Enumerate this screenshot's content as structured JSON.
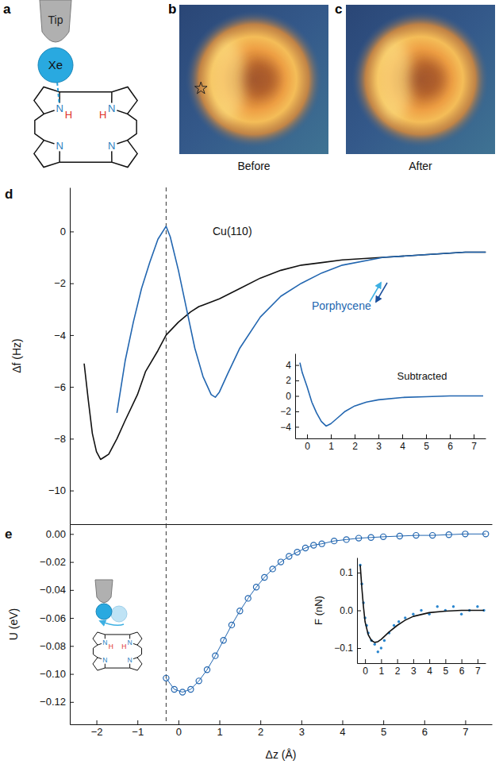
{
  "diagram": {
    "letter": "a",
    "tip": "Tip",
    "atom": "Xe",
    "nitrogens": [
      "N",
      "N",
      "N",
      "N"
    ],
    "hydrogens": [
      "H",
      "H"
    ]
  },
  "images": [
    {
      "letter": "b",
      "caption": "Before"
    },
    {
      "letter": "c",
      "caption": "After"
    }
  ],
  "schematic": {
    "nitrogens": [
      "N",
      "N",
      "N",
      "N"
    ],
    "hydrogens": [
      "H",
      "H"
    ]
  },
  "chart_data": [
    {
      "letter": "d",
      "type": "line",
      "y_label": "Δf (Hz)",
      "xlim": [
        -2.65,
        7.65
      ],
      "ylim": [
        -11.3,
        1.7
      ],
      "yticks": [
        0,
        {
          "value": -2,
          "label": "−2"
        },
        {
          "value": -4,
          "label": "−4"
        },
        {
          "value": -6,
          "label": "−6"
        },
        {
          "value": -8,
          "label": "−8"
        },
        {
          "value": -10,
          "label": "−10"
        }
      ],
      "tick_labels": "y",
      "vline_x": -0.3,
      "series": [
        {
          "name": "Cu(110)",
          "color": "#111111",
          "x": [
            -2.3,
            -2.2,
            -2.1,
            -2.0,
            -1.9,
            -1.8,
            -1.7,
            -1.5,
            -1.3,
            -1.0,
            -0.8,
            -0.5,
            -0.3,
            0,
            0.3,
            0.5,
            1.0,
            1.5,
            2.0,
            2.5,
            3.0,
            3.5,
            4.0,
            5.0,
            6.0,
            7.0,
            7.5
          ],
          "values": [
            -5.1,
            -6.5,
            -7.8,
            -8.5,
            -8.8,
            -8.7,
            -8.6,
            -8.0,
            -7.3,
            -6.3,
            -5.4,
            -4.6,
            -4.0,
            -3.5,
            -3.1,
            -2.9,
            -2.6,
            -2.2,
            -1.8,
            -1.5,
            -1.3,
            -1.2,
            -1.1,
            -1.0,
            -0.9,
            -0.8,
            -0.8
          ]
        },
        {
          "name": "Porphycene",
          "color": "#2266b0",
          "x": [
            -1.5,
            -1.3,
            -1.1,
            -0.9,
            -0.7,
            -0.5,
            -0.3,
            -0.2,
            0,
            0.2,
            0.4,
            0.6,
            0.8,
            0.9,
            1.0,
            1.2,
            1.5,
            2.0,
            2.5,
            3.0,
            3.5,
            4.0,
            5.0,
            6.0,
            7.0,
            7.5
          ],
          "values": [
            -7.0,
            -5.0,
            -3.5,
            -2.2,
            -1.2,
            -0.3,
            0.2,
            -0.2,
            -1.5,
            -3.0,
            -4.5,
            -5.6,
            -6.3,
            -6.4,
            -6.2,
            -5.5,
            -4.5,
            -3.3,
            -2.5,
            -2.0,
            -1.6,
            -1.3,
            -1.0,
            -0.9,
            -0.8,
            -0.8
          ]
        }
      ]
    },
    {
      "type": "line",
      "title": "Subtracted",
      "xlim": [
        -0.5,
        7.5
      ],
      "xticks": [
        0,
        1,
        2,
        3,
        4,
        5,
        6,
        7
      ],
      "ylim": [
        -5.5,
        5.5
      ],
      "yticks": [
        {
          "value": -4,
          "label": "−4"
        },
        {
          "value": -2,
          "label": "−2"
        },
        0,
        2,
        4
      ],
      "series": [
        {
          "color": "#2266b0",
          "x": [
            -0.3,
            -0.2,
            0,
            0.2,
            0.4,
            0.6,
            0.8,
            1.0,
            1.3,
            1.6,
            2.0,
            2.5,
            3.0,
            4.0,
            5.0,
            6.0,
            7.0,
            7.4
          ],
          "values": [
            4.3,
            3.0,
            1.2,
            -0.8,
            -2.2,
            -3.3,
            -3.9,
            -3.6,
            -2.8,
            -2.0,
            -1.3,
            -0.8,
            -0.5,
            -0.2,
            -0.1,
            0,
            0,
            0
          ]
        }
      ]
    },
    {
      "letter": "e",
      "type": "line",
      "marker": "circle",
      "x_label": "Δz (Å)",
      "y_label": "U (eV)",
      "xlim": [
        -2.65,
        7.65
      ],
      "xticks": [
        {
          "value": -2,
          "label": "−2"
        },
        {
          "value": -1,
          "label": "−1"
        },
        0,
        1,
        2,
        3,
        4,
        5,
        6,
        7
      ],
      "ylim": [
        -0.136,
        0.007
      ],
      "yticks": [
        {
          "value": 0,
          "label": "0.00"
        },
        {
          "value": -0.02,
          "label": "−0.02"
        },
        {
          "value": -0.04,
          "label": "−0.04"
        },
        {
          "value": -0.06,
          "label": "−0.06"
        },
        {
          "value": -0.08,
          "label": "−0.08"
        },
        {
          "value": -0.1,
          "label": "−0.10"
        },
        {
          "value": -0.12,
          "label": "−0.12"
        }
      ],
      "vline_x": -0.3,
      "series": [
        {
          "color": "#2266b0",
          "x": [
            -0.3,
            -0.1,
            0.1,
            0.3,
            0.5,
            0.7,
            0.9,
            1.1,
            1.3,
            1.5,
            1.7,
            1.9,
            2.1,
            2.3,
            2.5,
            2.7,
            2.9,
            3.1,
            3.3,
            3.5,
            3.8,
            4.1,
            4.4,
            4.7,
            5.0,
            5.4,
            5.8,
            6.2,
            6.6,
            7.0,
            7.5
          ],
          "values": [
            -0.103,
            -0.111,
            -0.113,
            -0.111,
            -0.105,
            -0.097,
            -0.087,
            -0.076,
            -0.065,
            -0.055,
            -0.046,
            -0.038,
            -0.031,
            -0.025,
            -0.02,
            -0.016,
            -0.013,
            -0.01,
            -0.008,
            -0.007,
            -0.005,
            -0.004,
            -0.003,
            -0.0025,
            -0.002,
            -0.0015,
            -0.001,
            -0.001,
            -0.0005,
            0,
            0
          ]
        }
      ]
    },
    {
      "type": "scatter",
      "y_label": "F (nN)",
      "xlim": [
        -0.5,
        7.5
      ],
      "xticks": [
        0,
        1,
        2,
        3,
        4,
        5,
        6,
        7
      ],
      "ylim": [
        -0.14,
        0.14
      ],
      "yticks": [
        {
          "value": 0.1,
          "label": "0.1"
        },
        {
          "value": 0,
          "label": "0.0"
        },
        {
          "value": -0.1,
          "label": "−0.1"
        }
      ],
      "series": [
        {
          "type": "scatter",
          "marker": "dot",
          "color": "#2a86cf",
          "x": [
            -0.3,
            -0.2,
            -0.1,
            0,
            0.1,
            0.2,
            0.4,
            0.6,
            0.8,
            1.0,
            1.2,
            1.5,
            1.8,
            2.1,
            2.5,
            3,
            3.5,
            4,
            4.5,
            5,
            5.5,
            6,
            6.5,
            7,
            7.4
          ],
          "values": [
            0.12,
            0.07,
            0.02,
            -0.02,
            -0.04,
            -0.06,
            -0.08,
            -0.09,
            -0.11,
            -0.1,
            -0.08,
            -0.06,
            -0.04,
            -0.03,
            -0.02,
            -0.01,
            0,
            -0.01,
            0.01,
            0,
            0.01,
            -0.01,
            0,
            0.01,
            0
          ]
        },
        {
          "type": "line",
          "color": "#111111",
          "x": [
            -0.3,
            -0.2,
            -0.1,
            0,
            0.2,
            0.4,
            0.6,
            0.8,
            1.0,
            1.5,
            2,
            2.5,
            3,
            4,
            5,
            6,
            7.4
          ],
          "values": [
            0.12,
            0.06,
            0.01,
            -0.03,
            -0.065,
            -0.08,
            -0.085,
            -0.083,
            -0.077,
            -0.057,
            -0.04,
            -0.026,
            -0.016,
            -0.006,
            -0.002,
            0,
            0
          ]
        }
      ]
    }
  ]
}
